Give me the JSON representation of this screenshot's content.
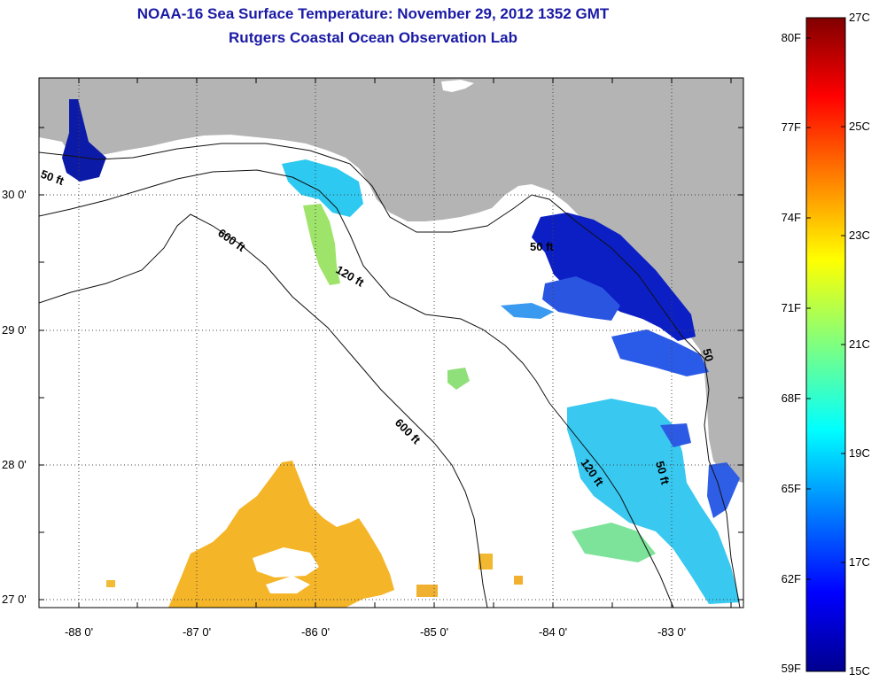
{
  "title": {
    "line1": "NOAA-16 Sea Surface Temperature:  November 29, 2012 1352 GMT",
    "line2": "Rutgers Coastal Ocean Observation Lab"
  },
  "map": {
    "lat_ticks": [
      "30 0'",
      "29 0'",
      "28 0'",
      "27 0'"
    ],
    "lon_ticks": [
      "-88 0'",
      "-87 0'",
      "-86 0'",
      "-85 0'",
      "-84 0'",
      "-83 0'"
    ],
    "contour_labels": {
      "fifty_nw": "50 ft",
      "fifty_e": "50 ft",
      "fifty_se": "50 ft",
      "fifty_far": "50",
      "onetwenty_n": "120 ft",
      "onetwenty_se": "120 ft",
      "sixhundred_n": "600 ft",
      "sixhundred_s": "600 ft"
    },
    "colors": {
      "land": "#b4b4b4",
      "water": "#ffffff",
      "warm_patch": "#f5b528",
      "cold_patch": "#0b1fc4"
    }
  },
  "colorbar": {
    "fahrenheit": [
      "80F",
      "77F",
      "74F",
      "71F",
      "68F",
      "65F",
      "62F",
      "59F"
    ],
    "celsius": [
      "27C",
      "25C",
      "23C",
      "21C",
      "19C",
      "17C",
      "15C"
    ],
    "range_c": [
      15,
      27
    ],
    "colormap": "jet"
  }
}
